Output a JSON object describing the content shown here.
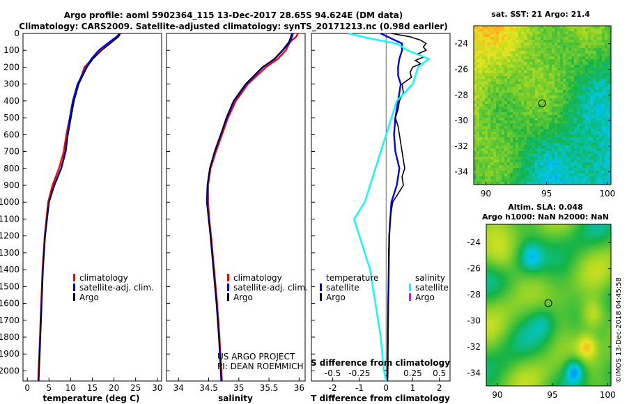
{
  "title": {
    "line1": "Argo profile: aoml 5902364_115 13-Dec-2017 28.65S 94.624E (DM data)",
    "line2": "Climatology: CARS2009. Satellite-adjusted climatology: synTS_20171213.nc (0.98d earlier)"
  },
  "colors": {
    "climatology": "#ff0000",
    "satellite": "#0000ff",
    "argo": "#000000",
    "sat_salinity": "#00ffff",
    "argo_salinity": "#ff00ff"
  },
  "chart_data": [
    {
      "type": "line",
      "id": "temperature",
      "xlabel": "temperature (deg C)",
      "xlim": [
        -1,
        31
      ],
      "xticks": [
        "0",
        "5",
        "10",
        "15",
        "20",
        "25",
        "30"
      ],
      "xtick_values": [
        0,
        5,
        10,
        15,
        20,
        25,
        30
      ],
      "ylim": [
        0,
        2060
      ],
      "yticks": [
        "0",
        "100",
        "200",
        "300",
        "400",
        "500",
        "600",
        "700",
        "800",
        "900",
        "1000",
        "1100",
        "1200",
        "1300",
        "1400",
        "1500",
        "1600",
        "1700",
        "1800",
        "1900",
        "2000"
      ],
      "ytick_values": [
        0,
        100,
        200,
        300,
        400,
        500,
        600,
        700,
        800,
        900,
        1000,
        1100,
        1200,
        1300,
        1400,
        1500,
        1600,
        1700,
        1800,
        1900,
        2000
      ],
      "legend": [
        "climatology",
        "satellite-adj. clim.",
        "Argo"
      ],
      "series": [
        {
          "name": "climatology",
          "color": "#ff0000",
          "depth": [
            0,
            20,
            50,
            100,
            150,
            200,
            300,
            400,
            500,
            600,
            700,
            800,
            900,
            1000,
            1200,
            1400,
            1600,
            1800,
            2000,
            2060
          ],
          "values": [
            21.5,
            21.0,
            19.5,
            17.0,
            15.0,
            13.2,
            11.8,
            10.6,
            9.8,
            9.0,
            8.4,
            7.3,
            5.8,
            4.8,
            4.0,
            3.5,
            3.2,
            2.9,
            2.6,
            2.5
          ]
        },
        {
          "name": "satellite-adj. clim.",
          "color": "#0000ff",
          "depth": [
            0,
            20,
            50,
            100,
            150,
            200,
            300,
            400,
            500,
            600,
            700,
            800,
            900,
            1000,
            1200,
            1400,
            1600,
            1800,
            2000,
            2060
          ],
          "values": [
            21.3,
            20.6,
            19.0,
            16.5,
            14.8,
            13.6,
            11.6,
            10.5,
            9.8,
            9.3,
            8.8,
            7.8,
            6.2,
            5.0,
            4.1,
            3.6,
            3.3,
            3.0,
            2.7,
            2.6
          ]
        },
        {
          "name": "Argo",
          "color": "#000000",
          "depth": [
            0,
            20,
            50,
            100,
            150,
            200,
            300,
            400,
            500,
            600,
            700,
            800,
            900,
            1000,
            1200,
            1400,
            1600,
            1800,
            2000,
            2060
          ],
          "values": [
            21.4,
            21.0,
            19.6,
            17.2,
            15.2,
            13.8,
            11.9,
            10.8,
            10.1,
            9.4,
            8.9,
            7.9,
            6.3,
            5.0,
            4.1,
            3.6,
            3.3,
            3.0,
            2.7,
            2.6
          ]
        }
      ]
    },
    {
      "type": "line",
      "id": "salinity",
      "xlabel": "salinity",
      "xlim": [
        33.8,
        36.1
      ],
      "xticks": [
        "34",
        "34.5",
        "35",
        "35.5",
        "36"
      ],
      "xtick_values": [
        34,
        34.5,
        35,
        35.5,
        36
      ],
      "ylim": [
        0,
        2060
      ],
      "legend": [
        "climatology",
        "satellite-adj. clim.",
        "Argo"
      ],
      "credit": [
        "US ARGO PROJECT",
        "PI: DEAN ROEMMICH"
      ],
      "series": [
        {
          "name": "climatology",
          "color": "#ff0000",
          "depth": [
            0,
            20,
            50,
            100,
            150,
            200,
            300,
            400,
            500,
            600,
            700,
            800,
            900,
            1000,
            1100,
            1200,
            1400,
            1600,
            1800,
            2000,
            2060
          ],
          "values": [
            35.98,
            35.95,
            35.85,
            35.78,
            35.65,
            35.45,
            35.15,
            34.95,
            34.82,
            34.72,
            34.62,
            34.53,
            34.49,
            34.49,
            34.51,
            34.54,
            34.59,
            34.64,
            34.68,
            34.71,
            34.72
          ]
        },
        {
          "name": "satellite-adj. clim.",
          "color": "#0000ff",
          "depth": [
            0,
            20,
            50,
            100,
            150,
            200,
            300,
            400,
            500,
            600,
            700,
            800,
            900,
            1000,
            1100,
            1200,
            1400,
            1600,
            1800,
            2000,
            2060
          ],
          "values": [
            35.9,
            35.88,
            35.85,
            35.73,
            35.6,
            35.4,
            35.12,
            34.92,
            34.8,
            34.7,
            34.6,
            34.52,
            34.48,
            34.47,
            34.5,
            34.53,
            34.58,
            34.63,
            34.67,
            34.7,
            34.71
          ]
        },
        {
          "name": "Argo",
          "color": "#000000",
          "depth": [
            0,
            20,
            50,
            100,
            150,
            200,
            300,
            400,
            500,
            600,
            700,
            800,
            900,
            1000,
            1100,
            1200,
            1400,
            1600,
            1800,
            2000,
            2060
          ],
          "values": [
            35.88,
            35.86,
            35.83,
            35.72,
            35.59,
            35.39,
            35.11,
            34.91,
            34.79,
            34.7,
            34.6,
            34.52,
            34.48,
            34.47,
            34.5,
            34.53,
            34.58,
            34.63,
            34.67,
            34.7,
            34.71
          ]
        }
      ]
    },
    {
      "type": "line",
      "id": "difference",
      "xlabel": "T difference from climatology",
      "xlabel_top": "S difference from climatology",
      "xlim": [
        -2.8,
        2.4
      ],
      "xticks": [
        "-2",
        "-1",
        "0",
        "1",
        "2"
      ],
      "xtick_values": [
        -2,
        -1,
        0,
        1,
        2
      ],
      "s_xticks": [
        "-0.5",
        "-0.25",
        "0",
        "0.25",
        "0.5"
      ],
      "s_xtick_values": [
        -0.5,
        -0.25,
        0,
        0.25,
        0.5
      ],
      "ylim": [
        0,
        2060
      ],
      "legend_temperature": {
        "title": "temperature",
        "items": [
          "satellite",
          "Argo"
        ]
      },
      "legend_salinity": {
        "title": "salinity",
        "items": [
          "satellite",
          "Argo"
        ]
      },
      "series": [
        {
          "name": "T satellite",
          "color": "#0000ff",
          "depth": [
            0,
            30,
            60,
            100,
            150,
            200,
            250,
            300,
            400,
            500,
            600,
            700,
            800,
            900,
            1000,
            1200,
            1400,
            1600,
            1800,
            2000,
            2060
          ],
          "values": [
            -0.2,
            0.2,
            0.6,
            0.6,
            0.5,
            0.45,
            0.45,
            0.55,
            0.45,
            0.35,
            0.3,
            0.35,
            0.5,
            0.4,
            0.2,
            0.12,
            0.1,
            0.08,
            0.07,
            0.06,
            0.05
          ]
        },
        {
          "name": "T Argo",
          "color": "#000000",
          "depth": [
            0,
            20,
            40,
            60,
            80,
            100,
            120,
            140,
            160,
            180,
            200,
            230,
            260,
            300,
            350,
            400,
            450,
            500,
            550,
            600,
            650,
            700,
            750,
            800,
            850,
            900,
            950,
            1000,
            1100,
            1200,
            1300,
            1400,
            1500,
            1600,
            1700,
            1800,
            1900,
            2000,
            2060
          ],
          "values": [
            0.2,
            0.9,
            1.3,
            1.5,
            1.4,
            1.5,
            1.2,
            1.4,
            1.1,
            1.3,
            1.0,
            0.9,
            0.95,
            0.6,
            0.65,
            0.5,
            0.45,
            0.35,
            0.45,
            0.5,
            0.55,
            0.6,
            0.65,
            0.7,
            0.6,
            0.65,
            0.45,
            0.25,
            0.15,
            0.12,
            0.1,
            0.1,
            0.1,
            0.08,
            0.07,
            0.06,
            0.06,
            0.05,
            0.05
          ]
        },
        {
          "name": "S satellite",
          "color": "#00ffff",
          "depth": [
            0,
            30,
            60,
            100,
            150,
            200,
            300,
            400,
            500,
            600,
            700,
            800,
            900,
            1000,
            1100,
            1200,
            1400,
            1600,
            1800,
            2000,
            2060
          ],
          "values": [
            -0.35,
            -0.15,
            0.1,
            0.2,
            0.4,
            0.3,
            0.25,
            0.1,
            0.05,
            0.0,
            -0.05,
            -0.1,
            -0.15,
            -0.2,
            -0.3,
            -0.25,
            -0.15,
            -0.1,
            -0.05,
            -0.02,
            0.0
          ]
        },
        {
          "name": "S Argo",
          "color": "#ff00ff",
          "depth": [],
          "values": []
        }
      ]
    }
  ],
  "sst_map": {
    "title": "sat. SST: 21 Argo: 21.4",
    "xticks": [
      "90",
      "95",
      "100"
    ],
    "yticks": [
      "-24",
      "-26",
      "-28",
      "-30",
      "-32",
      "-34"
    ],
    "lon_range": [
      89,
      100.3
    ],
    "lat_range": [
      -35,
      -22.6
    ],
    "marker": {
      "lon": 94.624,
      "lat": -28.65
    }
  },
  "sla_map": {
    "title_line1": "Altim. SLA: 0.048",
    "title_line2": "Argo h1000: NaN h2000: NaN",
    "xticks": [
      "90",
      "95",
      "100"
    ],
    "yticks": [
      "-24",
      "-26",
      "-28",
      "-30",
      "-32",
      "-34"
    ],
    "lon_range": [
      89,
      100.3
    ],
    "lat_range": [
      -35,
      -22.6
    ],
    "marker": {
      "lon": 94.624,
      "lat": -28.65
    }
  },
  "credit_vertical": "©IMOS 13-Dec-2018 04:45:58"
}
